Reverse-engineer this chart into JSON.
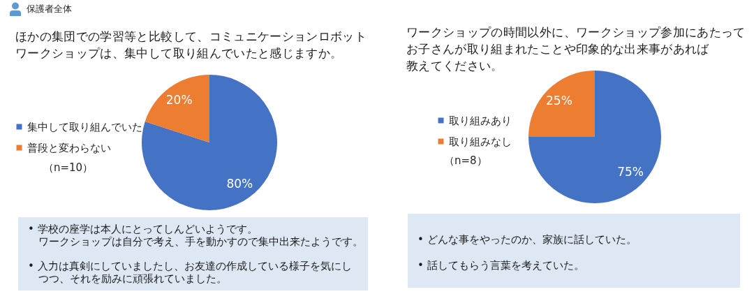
{
  "chart_data": [
    {
      "type": "pie",
      "title": "ほかの集団での学習等と比較して、コミュニケーションロボットワークショップは、集中して取り組んでいたと感じますか。",
      "categories": [
        "集中して取り組んでいた",
        "普段と変わらない"
      ],
      "values": [
        80,
        20
      ],
      "value_labels": [
        "80%",
        "20%"
      ],
      "colors": [
        "#4472c4",
        "#ed7d31"
      ],
      "legend": "left",
      "annotations": [
        "保護者全体",
        "（n=10）",
        "• 学校の座学は本人にとってしんどいようです。ワークショップは自分で考え、手を動かすので集中出来たようです。",
        "• 入力は真剣にしていましたし、お友達の作成している様子を気にしつつ、それを励みに頑張れていました。"
      ]
    },
    {
      "type": "pie",
      "title": "ワークショップの時間以外に、ワークショップ参加にあたってお子さんが取り組まれたことや印象的な出来事があれば教えてください。",
      "categories": [
        "取り組みあり",
        "取り組みなし"
      ],
      "values": [
        75,
        25
      ],
      "value_labels": [
        "75%",
        "25%"
      ],
      "colors": [
        "#4472c4",
        "#ed7d31"
      ],
      "legend": "left",
      "annotations": [
        "（n=8）",
        "• どんな事をやったのか、家族に話していた。",
        "• 話してもらう言葉を考えていた。"
      ]
    }
  ]
}
